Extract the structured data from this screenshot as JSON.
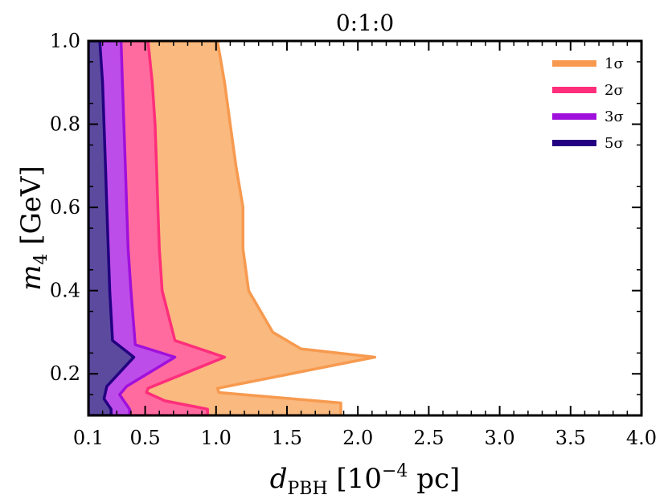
{
  "chart_data": {
    "type": "area",
    "title": "0:1:0",
    "xlabel": "d_PBH [10^-4 pc]",
    "ylabel": "m_4 [GeV]",
    "xlim": [
      0.1,
      4.0
    ],
    "ylim": [
      0.1,
      1.0
    ],
    "xticks": [
      0.1,
      0.5,
      1.0,
      1.5,
      2.0,
      2.5,
      3.0,
      3.5,
      4.0
    ],
    "xtick_labels": [
      "0.1",
      "0.5",
      "1.0",
      "1.5",
      "2.0",
      "2.5",
      "3.0",
      "3.5",
      "4.0"
    ],
    "yticks": [
      0.2,
      0.4,
      0.6,
      0.8,
      1.0
    ],
    "ytick_labels": [
      "0.2",
      "0.4",
      "0.6",
      "0.8",
      "1.0"
    ],
    "legend_position": "top-right",
    "series": [
      {
        "name": "1σ",
        "legend_label": "1σ",
        "color": "#f79a4f",
        "fill": "#f9b97f",
        "boundary": [
          [
            1.88,
            0.1
          ],
          [
            1.88,
            0.13
          ],
          [
            1.02,
            0.155
          ],
          [
            1.01,
            0.165
          ],
          [
            2.12,
            0.24
          ],
          [
            1.6,
            0.26
          ],
          [
            1.4,
            0.3
          ],
          [
            1.23,
            0.4
          ],
          [
            1.19,
            0.5
          ],
          [
            1.19,
            0.6
          ],
          [
            1.14,
            0.7
          ],
          [
            1.1,
            0.8
          ],
          [
            1.06,
            0.9
          ],
          [
            1.01,
            1.0
          ]
        ]
      },
      {
        "name": "2σ",
        "legend_label": "2σ",
        "color": "#ff2e7b",
        "fill": "#ff6b9e",
        "boundary": [
          [
            0.94,
            0.1
          ],
          [
            0.94,
            0.115
          ],
          [
            0.64,
            0.135
          ],
          [
            0.51,
            0.155
          ],
          [
            0.52,
            0.165
          ],
          [
            1.06,
            0.24
          ],
          [
            0.71,
            0.28
          ],
          [
            0.62,
            0.4
          ],
          [
            0.6,
            0.5
          ],
          [
            0.59,
            0.6
          ],
          [
            0.58,
            0.7
          ],
          [
            0.57,
            0.8
          ],
          [
            0.55,
            0.9
          ],
          [
            0.52,
            1.0
          ]
        ]
      },
      {
        "name": "3σ",
        "legend_label": "3σ",
        "color": "#a010dc",
        "fill": "#bd4de8",
        "boundary": [
          [
            0.39,
            0.1
          ],
          [
            0.39,
            0.115
          ],
          [
            0.32,
            0.15
          ],
          [
            0.37,
            0.17
          ],
          [
            0.71,
            0.24
          ],
          [
            0.43,
            0.27
          ],
          [
            0.4,
            0.4
          ],
          [
            0.38,
            0.5
          ],
          [
            0.37,
            0.6
          ],
          [
            0.36,
            0.7
          ],
          [
            0.35,
            0.8
          ],
          [
            0.34,
            0.9
          ],
          [
            0.33,
            1.0
          ]
        ]
      },
      {
        "name": "5σ",
        "legend_label": "5σ",
        "color": "#230081",
        "fill": "#5c4a9e",
        "boundary": [
          [
            0.26,
            0.1
          ],
          [
            0.26,
            0.115
          ],
          [
            0.21,
            0.14
          ],
          [
            0.23,
            0.17
          ],
          [
            0.42,
            0.24
          ],
          [
            0.27,
            0.28
          ],
          [
            0.25,
            0.4
          ],
          [
            0.24,
            0.5
          ],
          [
            0.23,
            0.6
          ],
          [
            0.22,
            0.7
          ],
          [
            0.21,
            0.8
          ],
          [
            0.2,
            0.9
          ],
          [
            0.18,
            1.0
          ]
        ]
      }
    ]
  }
}
